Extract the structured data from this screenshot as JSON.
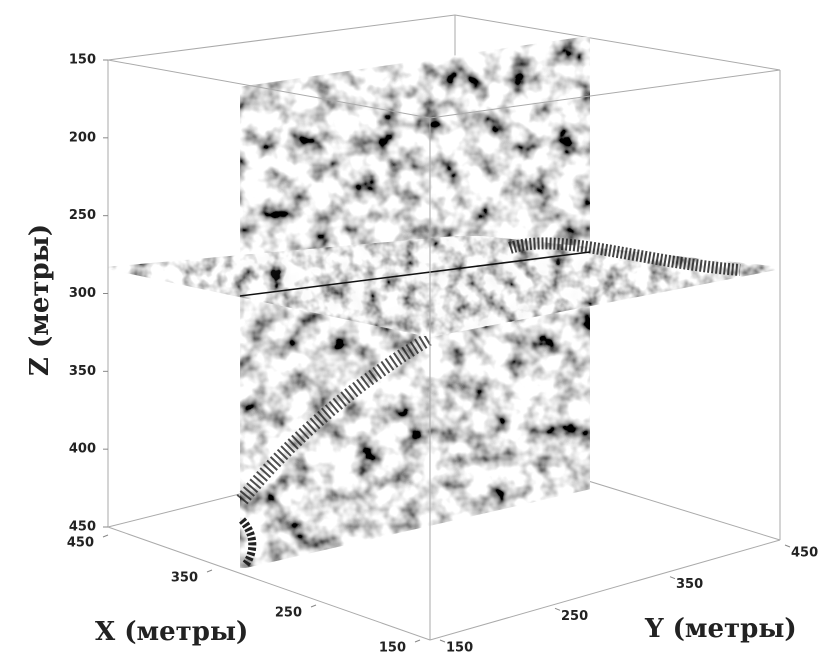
{
  "chart_data": {
    "type": "volume-slices",
    "z_label": "Z (метры)",
    "x_label": "X (метры)",
    "y_label": "Y (метры)",
    "zlim": [
      150,
      450
    ],
    "zticks": [
      150,
      200,
      250,
      300,
      350,
      400,
      450
    ],
    "xlim": [
      450,
      150
    ],
    "xticks": [
      450,
      350,
      250,
      150
    ],
    "ylim": [
      150,
      450
    ],
    "yticks": [
      150,
      250,
      350,
      450
    ]
  }
}
